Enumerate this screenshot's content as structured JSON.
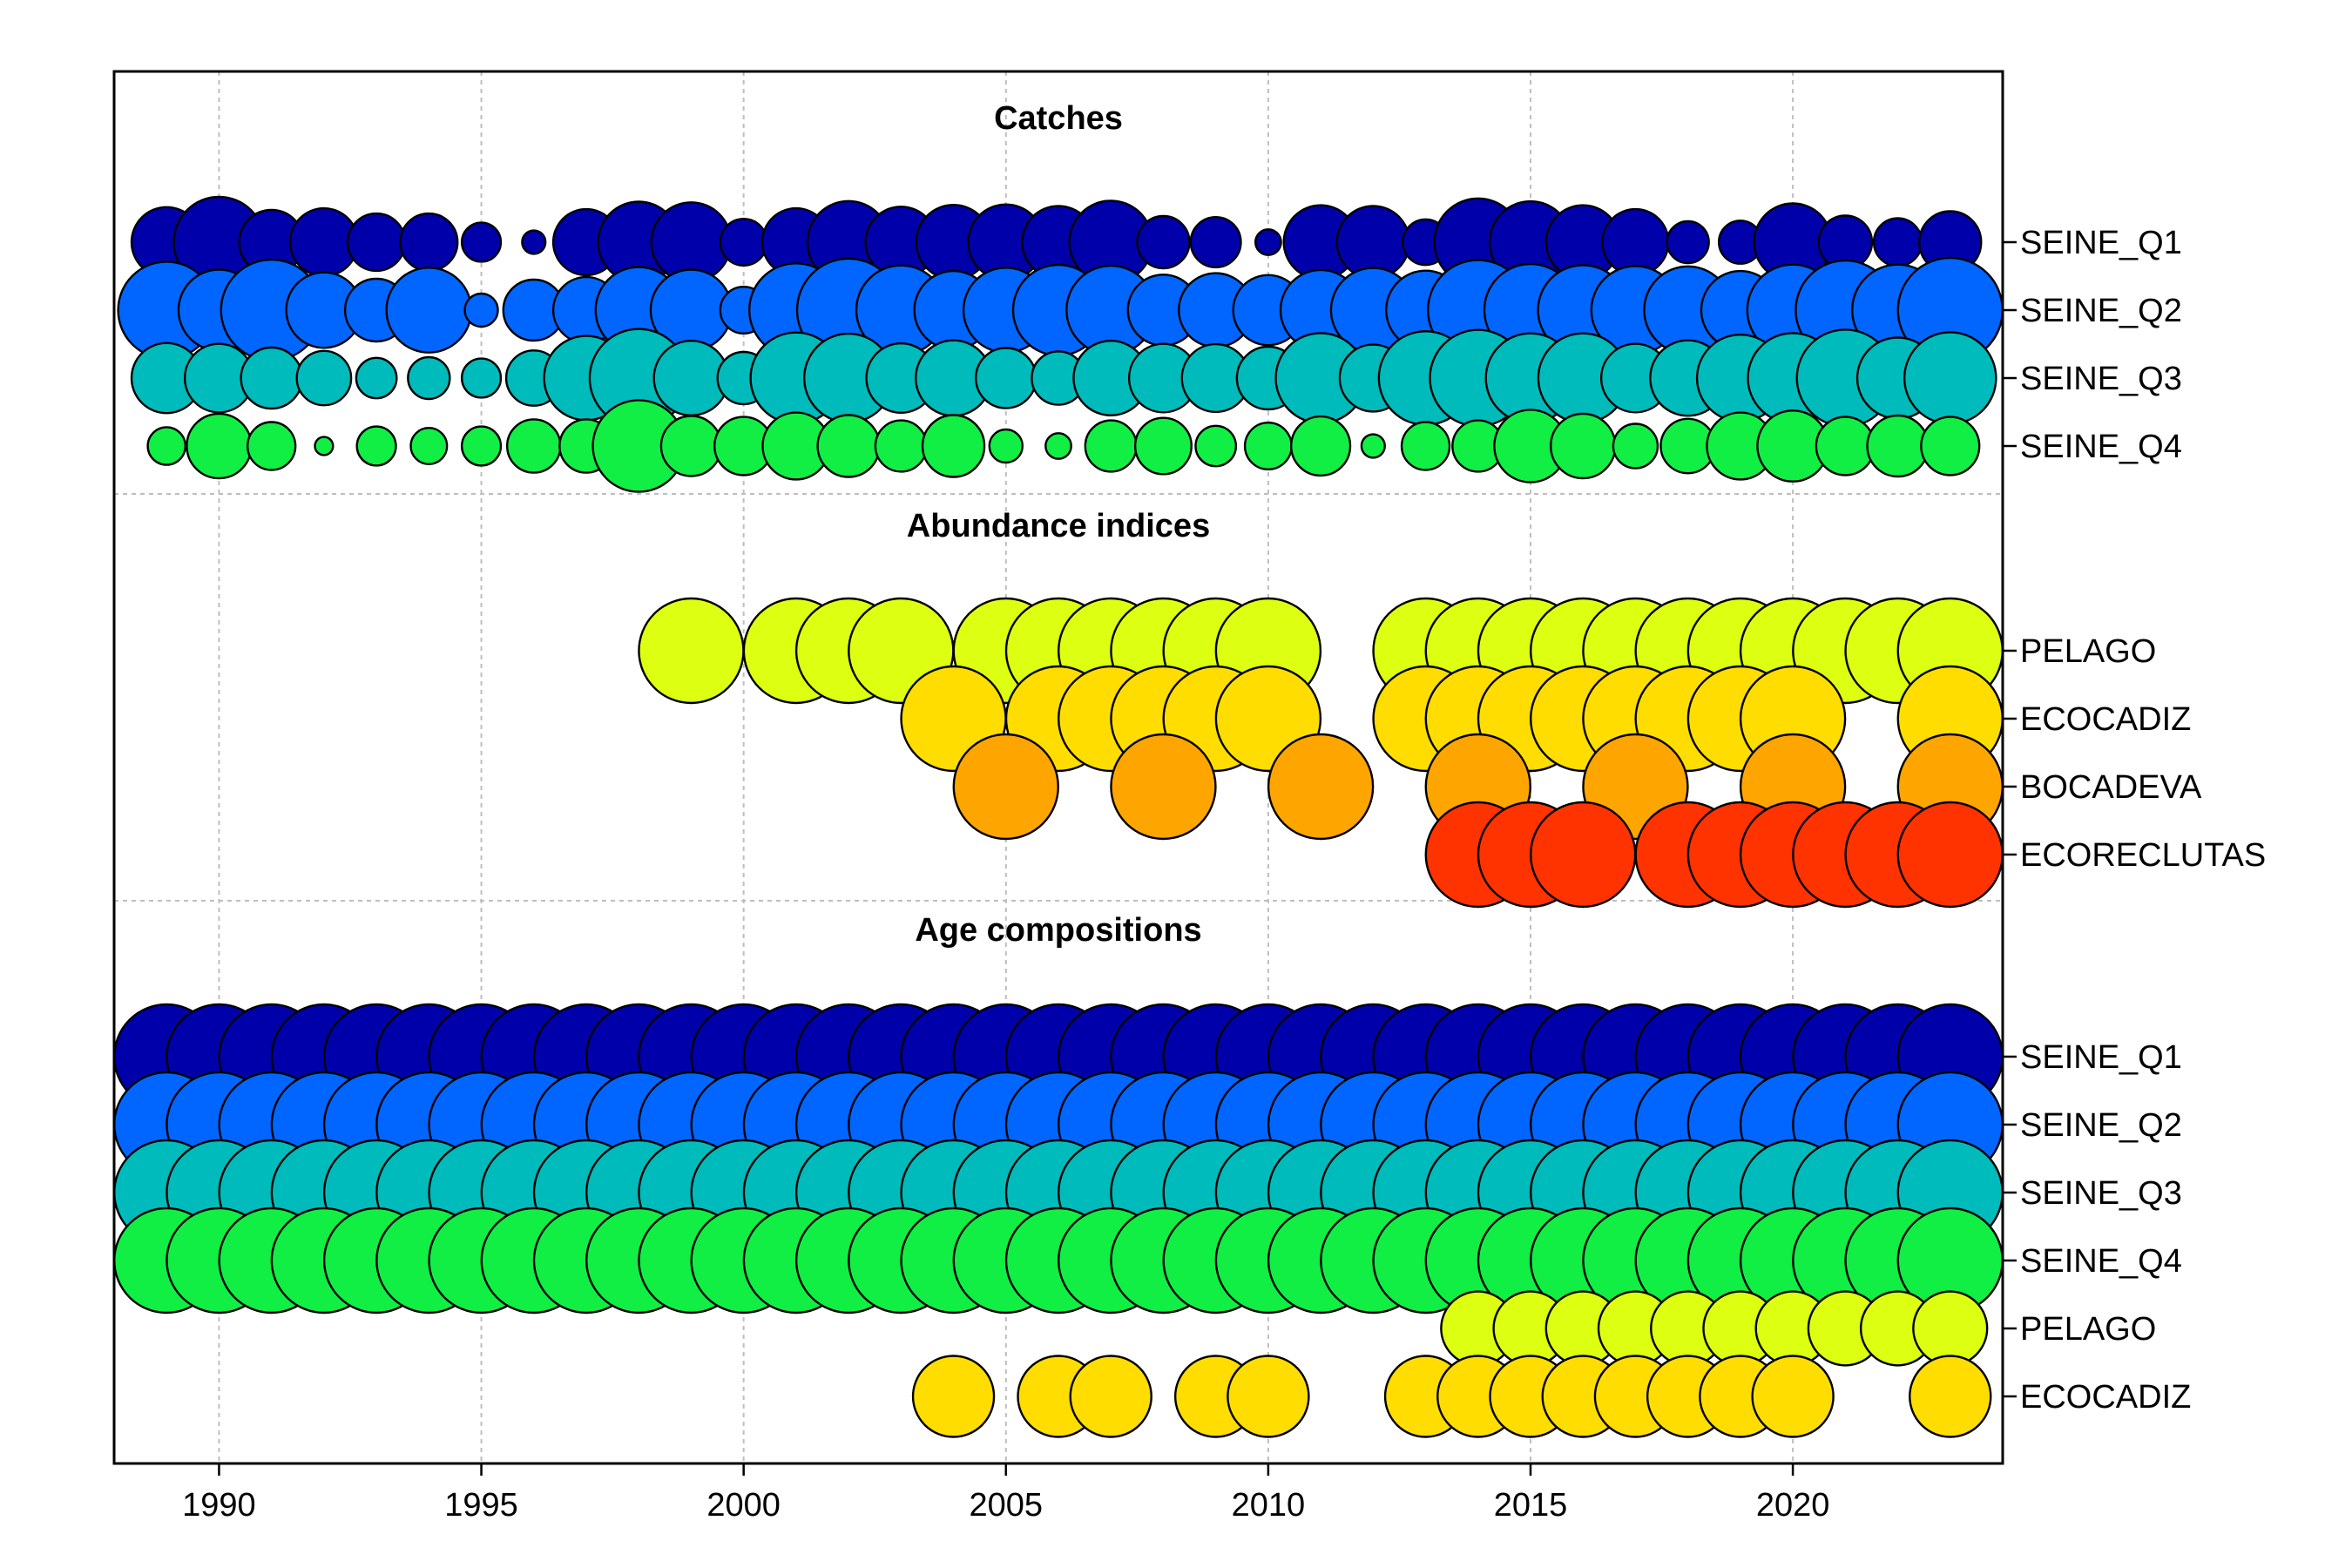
{
  "chart_data": {
    "type": "scatter",
    "subtype": "bubble",
    "title": "",
    "xlabel": "",
    "ylabel": "",
    "xlim": [
      1988,
      2024
    ],
    "x_ticks": [
      1990,
      1995,
      2000,
      2005,
      2010,
      2015,
      2020
    ],
    "grid": true,
    "legend": "none",
    "years": [
      1989,
      1990,
      1991,
      1992,
      1993,
      1994,
      1995,
      1996,
      1997,
      1998,
      1999,
      2000,
      2001,
      2002,
      2003,
      2004,
      2005,
      2006,
      2007,
      2008,
      2009,
      2010,
      2011,
      2012,
      2013,
      2014,
      2015,
      2016,
      2017,
      2018,
      2019,
      2020,
      2021,
      2022,
      2023
    ],
    "panels": [
      {
        "title": "Catches",
        "series": [
          {
            "name": "SEINE_Q1",
            "color": "#0000AA",
            "values": [
              0.45,
              0.75,
              0.38,
              0.42,
              0.3,
              0.3,
              0.14,
              0.05,
              0.4,
              0.6,
              0.58,
              0.2,
              0.42,
              0.62,
              0.46,
              0.51,
              0.52,
              0.48,
              0.63,
              0.25,
              0.23,
              0.06,
              0.5,
              0.48,
              0.19,
              0.7,
              0.61,
              0.5,
              0.4,
              0.16,
              0.17,
              0.55,
              0.26,
              0.21,
              0.35
            ]
          },
          {
            "name": "SEINE_Q2",
            "color": "#0066FF",
            "values": [
              0.86,
              0.6,
              0.93,
              0.52,
              0.36,
              0.66,
              0.1,
              0.34,
              0.4,
              0.68,
              0.6,
              0.2,
              0.8,
              0.97,
              0.73,
              0.56,
              0.66,
              0.75,
              0.72,
              0.46,
              0.5,
              0.45,
              0.59,
              0.65,
              0.57,
              0.92,
              0.78,
              0.74,
              0.71,
              0.7,
              0.56,
              0.76,
              0.9,
              0.76,
              1.0
            ]
          },
          {
            "name": "SEINE_Q3",
            "color": "#00BBBB",
            "values": [
              0.45,
              0.43,
              0.34,
              0.27,
              0.15,
              0.16,
              0.14,
              0.28,
              0.65,
              0.88,
              0.51,
              0.25,
              0.76,
              0.72,
              0.44,
              0.52,
              0.33,
              0.26,
              0.51,
              0.43,
              0.42,
              0.36,
              0.74,
              0.41,
              0.8,
              0.85,
              0.73,
              0.73,
              0.43,
              0.52,
              0.69,
              0.74,
              0.86,
              0.6,
              0.77
            ]
          },
          {
            "name": "SEINE_Q4",
            "color": "#11EE44",
            "values": [
              0.13,
              0.38,
              0.21,
              0.03,
              0.14,
              0.12,
              0.14,
              0.26,
              0.26,
              0.77,
              0.33,
              0.31,
              0.41,
              0.35,
              0.24,
              0.35,
              0.1,
              0.06,
              0.24,
              0.29,
              0.15,
              0.2,
              0.32,
              0.05,
              0.21,
              0.24,
              0.48,
              0.38,
              0.18,
              0.27,
              0.41,
              0.46,
              0.31,
              0.34,
              0.31
            ]
          }
        ]
      },
      {
        "title": "Abundance indices",
        "series": [
          {
            "name": "PELAGO",
            "color": "#DDFF11",
            "values": [
              null,
              null,
              null,
              null,
              null,
              null,
              null,
              null,
              null,
              null,
              1.0,
              null,
              1.0,
              1.0,
              1.0,
              null,
              1.0,
              1.0,
              1.0,
              1.0,
              1.0,
              1.0,
              null,
              null,
              1.0,
              1.0,
              1.0,
              1.0,
              1.0,
              1.0,
              1.0,
              1.0,
              1.0,
              1.0,
              1.0
            ]
          },
          {
            "name": "ECOCADIZ",
            "color": "#FFDD00",
            "values": [
              null,
              null,
              null,
              null,
              null,
              null,
              null,
              null,
              null,
              null,
              null,
              null,
              null,
              null,
              null,
              1.0,
              null,
              1.0,
              1.0,
              1.0,
              1.0,
              1.0,
              null,
              null,
              1.0,
              1.0,
              1.0,
              1.0,
              1.0,
              1.0,
              1.0,
              1.0,
              null,
              null,
              1.0
            ]
          },
          {
            "name": "BOCADEVA",
            "color": "#FFA500",
            "values": [
              null,
              null,
              null,
              null,
              null,
              null,
              null,
              null,
              null,
              null,
              null,
              null,
              null,
              null,
              null,
              null,
              1.0,
              null,
              null,
              1.0,
              null,
              null,
              1.0,
              null,
              null,
              1.0,
              null,
              null,
              1.0,
              null,
              null,
              1.0,
              null,
              null,
              1.0
            ]
          },
          {
            "name": "ECORECLUTAS",
            "color": "#FF3300",
            "values": [
              null,
              null,
              null,
              null,
              null,
              null,
              null,
              null,
              null,
              null,
              null,
              null,
              null,
              null,
              null,
              null,
              null,
              null,
              null,
              null,
              null,
              null,
              null,
              null,
              null,
              1.0,
              1.0,
              1.0,
              null,
              1.0,
              1.0,
              1.0,
              1.0,
              1.0,
              1.0
            ]
          }
        ]
      },
      {
        "title": "Age compositions",
        "series": [
          {
            "name": "SEINE_Q1",
            "color": "#0000AA",
            "values": [
              1.0,
              1.0,
              1.0,
              1.0,
              1.0,
              1.0,
              1.0,
              1.0,
              1.0,
              1.0,
              1.0,
              1.0,
              1.0,
              1.0,
              1.0,
              1.0,
              1.0,
              1.0,
              1.0,
              1.0,
              1.0,
              1.0,
              1.0,
              1.0,
              1.0,
              1.0,
              1.0,
              1.0,
              1.0,
              1.0,
              1.0,
              1.0,
              1.0,
              1.0,
              1.0
            ]
          },
          {
            "name": "SEINE_Q2",
            "color": "#0066FF",
            "values": [
              1.0,
              1.0,
              1.0,
              1.0,
              1.0,
              1.0,
              1.0,
              1.0,
              1.0,
              1.0,
              1.0,
              1.0,
              1.0,
              1.0,
              1.0,
              1.0,
              1.0,
              1.0,
              1.0,
              1.0,
              1.0,
              1.0,
              1.0,
              1.0,
              1.0,
              1.0,
              1.0,
              1.0,
              1.0,
              1.0,
              1.0,
              1.0,
              1.0,
              1.0,
              1.0
            ]
          },
          {
            "name": "SEINE_Q3",
            "color": "#00BBBB",
            "values": [
              1.0,
              1.0,
              1.0,
              1.0,
              1.0,
              1.0,
              1.0,
              1.0,
              1.0,
              1.0,
              1.0,
              1.0,
              1.0,
              1.0,
              1.0,
              1.0,
              1.0,
              1.0,
              1.0,
              1.0,
              1.0,
              1.0,
              1.0,
              1.0,
              1.0,
              1.0,
              1.0,
              1.0,
              1.0,
              1.0,
              1.0,
              1.0,
              1.0,
              1.0,
              1.0
            ]
          },
          {
            "name": "SEINE_Q4",
            "color": "#11EE44",
            "values": [
              1.0,
              1.0,
              1.0,
              1.0,
              1.0,
              1.0,
              1.0,
              1.0,
              1.0,
              1.0,
              1.0,
              1.0,
              1.0,
              1.0,
              1.0,
              1.0,
              1.0,
              1.0,
              1.0,
              1.0,
              1.0,
              1.0,
              1.0,
              1.0,
              1.0,
              1.0,
              1.0,
              1.0,
              1.0,
              1.0,
              1.0,
              1.0,
              1.0,
              1.0,
              1.0
            ]
          },
          {
            "name": "PELAGO",
            "color": "#DDFF11",
            "values": [
              null,
              null,
              null,
              null,
              null,
              null,
              null,
              null,
              null,
              null,
              null,
              null,
              null,
              null,
              null,
              null,
              null,
              null,
              null,
              null,
              null,
              null,
              null,
              null,
              null,
              0.5,
              0.5,
              0.5,
              0.5,
              0.5,
              0.5,
              0.5,
              0.5,
              0.5,
              0.5
            ]
          },
          {
            "name": "ECOCADIZ",
            "color": "#FFDD00",
            "values": [
              null,
              null,
              null,
              null,
              null,
              null,
              null,
              null,
              null,
              null,
              null,
              null,
              null,
              null,
              null,
              0.6,
              null,
              0.6,
              0.6,
              null,
              0.6,
              0.6,
              null,
              null,
              0.6,
              0.6,
              0.6,
              0.6,
              0.6,
              0.6,
              0.6,
              0.6,
              null,
              null,
              0.6
            ]
          }
        ]
      }
    ]
  }
}
